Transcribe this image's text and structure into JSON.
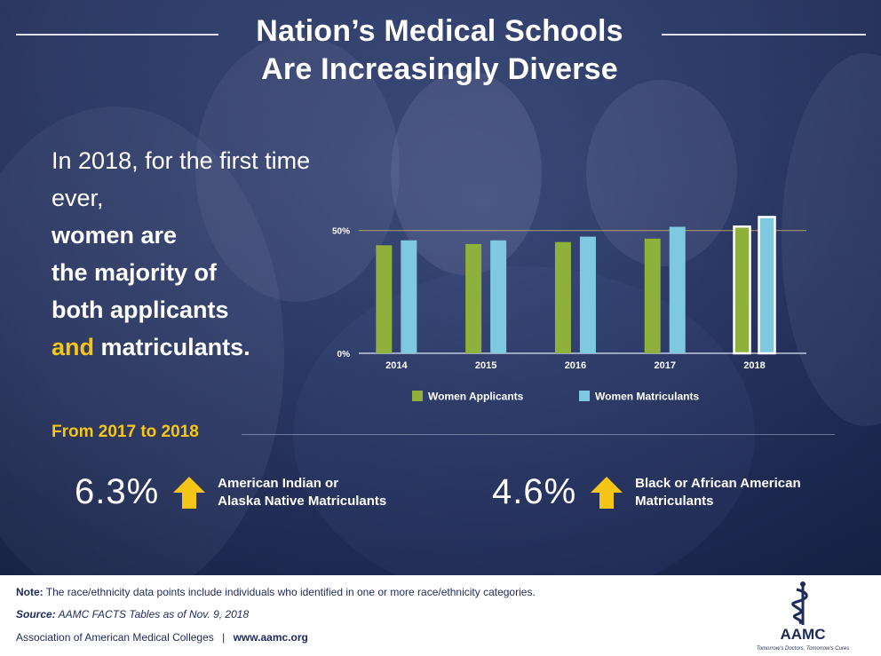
{
  "title": {
    "line1": "Nation’s Medical Schools",
    "line2": "Are Increasingly Diverse"
  },
  "intro": {
    "text1": "In 2018, for the first time ever,",
    "bold1": "women are",
    "bold2": "the majority of",
    "bold3": "both applicants",
    "accent": "and",
    "bold4": "matriculants."
  },
  "chart_data": {
    "type": "bar",
    "categories": [
      "2014",
      "2015",
      "2016",
      "2017",
      "2018"
    ],
    "series": [
      {
        "name": "Women Applicants",
        "values": [
          44,
          44.5,
          45.3,
          46.7,
          51.6
        ]
      },
      {
        "name": "Women Matriculants",
        "values": [
          46,
          46,
          47.5,
          51.5,
          55.5
        ]
      }
    ],
    "ylim": [
      0,
      60
    ],
    "yticks": [
      {
        "value": 0,
        "label": "0%"
      },
      {
        "value": 50,
        "label": "50%"
      }
    ],
    "highlight_category": "2018",
    "legend_position": "bottom",
    "colors": {
      "applicants": "#8fb03a",
      "matriculants": "#7ec9e0",
      "highlight_outline": "#ffffff"
    }
  },
  "from": {
    "title": "From 2017 to 2018",
    "stats": [
      {
        "value": "6.3%",
        "label_line1": "American Indian or",
        "label_line2": "Alaska Native Matriculants"
      },
      {
        "value": "4.6%",
        "label_line1": "Black or African American",
        "label_line2": "Matriculants"
      }
    ]
  },
  "footer": {
    "note_label": "Note:",
    "note_text": "The race/ethnicity data points include individuals who identified in one or more race/ethnicity categories.",
    "source_label": "Source:",
    "source_text": "AAMC FACTS Tables as of Nov. 9, 2018",
    "org": "Association of American Medical Colleges",
    "divider": "|",
    "url": "www.aamc.org"
  },
  "logo": {
    "text": "AAMC",
    "tagline": "Tomorrow's Doctors, Tomorrow's Cures"
  },
  "colors": {
    "accent": "#f5c518",
    "navy": "#1e2a5a",
    "hero": "#2f3d6b"
  }
}
